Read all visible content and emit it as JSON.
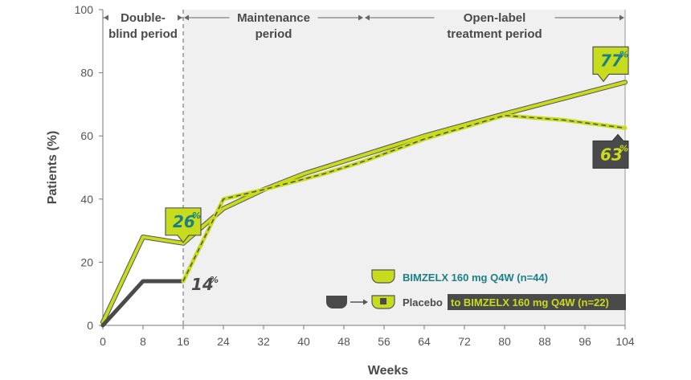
{
  "chart_data": {
    "type": "line",
    "xlabel": "Weeks",
    "ylabel": "Patients (%)",
    "xlim": [
      0,
      104
    ],
    "ylim": [
      0,
      100
    ],
    "x_ticks": [
      0,
      8,
      16,
      24,
      32,
      40,
      48,
      56,
      64,
      72,
      80,
      88,
      96,
      104
    ],
    "y_ticks": [
      0,
      20,
      40,
      60,
      80,
      100
    ],
    "grid": false,
    "periods": [
      {
        "label_lines": [
          "Double-",
          "blind period"
        ],
        "x_start": 0,
        "x_end": 16
      },
      {
        "label_lines": [
          "Maintenance",
          "period"
        ],
        "x_start": 16,
        "x_end": 52
      },
      {
        "label_lines": [
          "Open-label",
          "treatment period"
        ],
        "x_start": 52,
        "x_end": 104
      }
    ],
    "series": [
      {
        "name": "BIMZELX 160 mg Q4W (n=44)",
        "x": [
          0,
          8,
          16,
          24,
          32,
          40,
          52,
          64,
          80,
          92,
          104
        ],
        "y": [
          1,
          28,
          26,
          37,
          43,
          48,
          54,
          60,
          67,
          72,
          77
        ],
        "color": "#c8dc1e",
        "outline": "#555555",
        "style": "solid"
      },
      {
        "name": "Placebo to BIMZELX 160 mg Q4W (n=22)",
        "x": [
          0,
          8,
          16,
          24,
          32,
          44,
          52,
          64,
          80,
          92,
          104
        ],
        "y": [
          0,
          14,
          14,
          40,
          43,
          48,
          52,
          59,
          66.5,
          65,
          62.5
        ],
        "color": "#c8dc1e",
        "placebo_color": "#4a4a4a",
        "placebo_until": 16,
        "style": "dashed"
      }
    ],
    "annotations": [
      {
        "value": "26",
        "suffix": "%",
        "x": 16,
        "y": 26,
        "style": "green-box"
      },
      {
        "value": "14",
        "suffix": "%",
        "x": 16,
        "y": 14,
        "style": "plain"
      },
      {
        "value": "77",
        "suffix": "%",
        "x": 104,
        "y": 77,
        "style": "green-box"
      },
      {
        "value": "63",
        "suffix": "%",
        "x": 104,
        "y": 63,
        "style": "dark-box"
      }
    ],
    "legend": {
      "placement": "bottom-right",
      "bimzelx_label": "BIMZELX 160 mg Q4W (n=44)",
      "placebo_label": "Placebo",
      "switch_label": "to BIMZELX 160 mg Q4W (n=22)"
    },
    "colors": {
      "lime": "#c8dc1e",
      "dark": "#4a4a4a",
      "teal": "#1a7f86",
      "shade": "#f0f0f0"
    }
  }
}
